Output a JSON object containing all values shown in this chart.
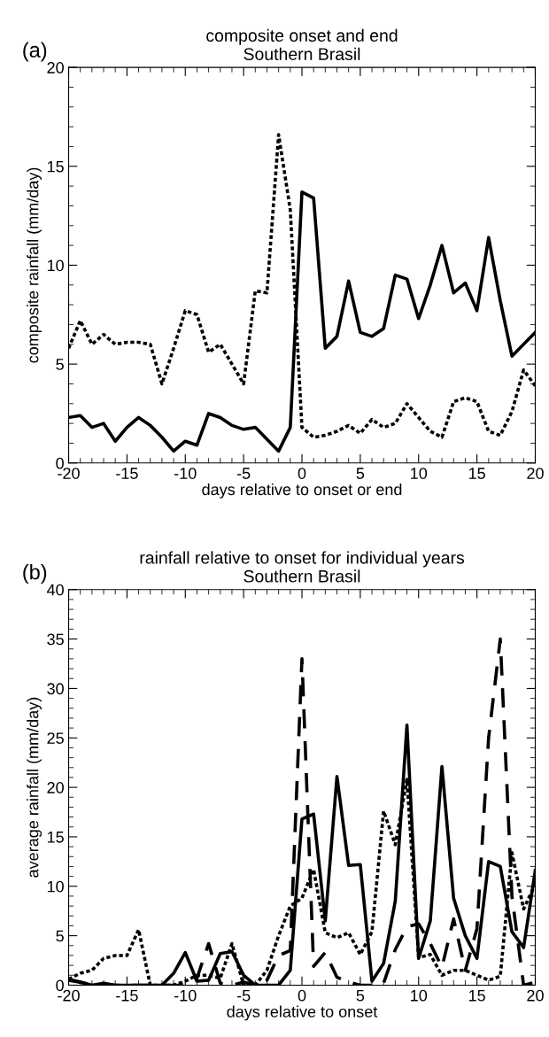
{
  "chart_data": [
    {
      "type": "line",
      "title": "composite onset and end\nSouthern Brasil",
      "xlabel": "days relative to onset or end",
      "ylabel": "composite rainfall (mm/day)",
      "annotations": [
        "(a)"
      ],
      "x": [
        -20,
        -19,
        -18,
        -17,
        -16,
        -15,
        -14,
        -13,
        -12,
        -11,
        -10,
        -9,
        -8,
        -7,
        -6,
        -5,
        -4,
        -3,
        -2,
        -1,
        0,
        1,
        2,
        3,
        4,
        5,
        6,
        7,
        8,
        9,
        10,
        11,
        12,
        13,
        14,
        15,
        16,
        17,
        18,
        19,
        20
      ],
      "series": [
        {
          "color": "#000000",
          "line_style": "solid",
          "values": [
            2.3,
            2.4,
            1.8,
            2.0,
            1.1,
            1.8,
            2.3,
            1.9,
            1.3,
            0.6,
            1.1,
            0.9,
            2.5,
            2.3,
            1.9,
            1.7,
            1.8,
            1.2,
            0.6,
            1.8,
            13.7,
            13.4,
            5.8,
            6.4,
            9.2,
            6.6,
            6.4,
            6.8,
            9.5,
            9.3,
            7.3,
            9.0,
            11.0,
            8.6,
            9.1,
            7.7,
            11.4,
            8.2,
            5.4,
            6.0,
            6.6
          ]
        },
        {
          "color": "#000000",
          "line_style": "dotted",
          "values": [
            5.8,
            7.2,
            6.0,
            6.5,
            6.0,
            6.1,
            6.1,
            6.0,
            4.0,
            5.8,
            7.7,
            7.5,
            5.6,
            6.0,
            5.0,
            4.0,
            8.7,
            8.6,
            16.6,
            12.8,
            1.8,
            1.3,
            1.4,
            1.6,
            1.9,
            1.5,
            2.2,
            1.8,
            2.0,
            3.0,
            2.3,
            1.6,
            1.3,
            3.1,
            3.3,
            3.1,
            1.6,
            1.4,
            2.6,
            4.7,
            3.9
          ]
        }
      ],
      "xlim": [
        -20,
        20
      ],
      "xticks": [
        -20,
        -15,
        -10,
        -5,
        0,
        5,
        10,
        15,
        20
      ],
      "ylim": [
        0,
        20
      ],
      "yticks": [
        0,
        5,
        10,
        15,
        20
      ],
      "grid": false
    },
    {
      "type": "line",
      "title": "rainfall relative to onset for individual years\nSouthern Brasil",
      "xlabel": "days relative to onset",
      "ylabel": "average rainfall (mm/day)",
      "annotations": [
        "(b)"
      ],
      "x": [
        -20,
        -19,
        -18,
        -17,
        -16,
        -15,
        -14,
        -13,
        -12,
        -11,
        -10,
        -9,
        -8,
        -7,
        -6,
        -5,
        -4,
        -3,
        -2,
        -1,
        0,
        1,
        2,
        3,
        4,
        5,
        6,
        7,
        8,
        9,
        10,
        11,
        12,
        13,
        14,
        15,
        16,
        17,
        18,
        19,
        20
      ],
      "series": [
        {
          "color": "#000000",
          "line_style": "solid",
          "values": [
            0.6,
            0.3,
            0,
            0.2,
            0,
            0,
            0,
            0,
            0,
            1.2,
            3.3,
            0.4,
            0.5,
            3.2,
            3.4,
            1.0,
            0,
            0,
            0,
            1.5,
            16.8,
            17.3,
            6.5,
            21.1,
            12.1,
            12.2,
            0.4,
            2.2,
            8.5,
            26.3,
            2.7,
            6.5,
            22.1,
            8.8,
            5.0,
            2.7,
            12.5,
            12.0,
            5.4,
            3.8,
            11.6
          ]
        },
        {
          "color": "#000000",
          "line_style": "dotted",
          "values": [
            0.6,
            1.2,
            1.5,
            2.7,
            3.0,
            3.0,
            5.6,
            0,
            0,
            0,
            0.4,
            1.0,
            1.0,
            0.7,
            4.2,
            0,
            0,
            1.5,
            5.0,
            8.0,
            8.8,
            11.7,
            5.3,
            4.8,
            5.3,
            3.1,
            5.4,
            17.6,
            14.2,
            20.8,
            2.8,
            3.1,
            1.0,
            1.5,
            1.5,
            1.0,
            0.5,
            0.9,
            13.4,
            7.7,
            10.2
          ]
        },
        {
          "color": "#000000",
          "line_style": "dashed",
          "values": [
            0.5,
            0.3,
            0,
            0,
            0,
            0,
            0,
            0,
            0,
            0,
            0,
            0.7,
            4.2,
            0.2,
            0,
            0.3,
            0,
            0.5,
            3.0,
            3.5,
            33.0,
            1.9,
            3.3,
            0.8,
            0.3,
            0,
            0,
            0.2,
            3.6,
            5.9,
            6.2,
            4.2,
            1.8,
            6.7,
            1.5,
            5.7,
            25.0,
            35.0,
            9.0,
            0,
            0.3
          ]
        }
      ],
      "xlim": [
        -20,
        20
      ],
      "xticks": [
        -20,
        -15,
        -10,
        -5,
        0,
        5,
        10,
        15,
        20
      ],
      "ylim": [
        0,
        40
      ],
      "yticks": [
        0,
        5,
        10,
        15,
        20,
        25,
        30,
        35,
        40
      ],
      "grid": false
    }
  ]
}
